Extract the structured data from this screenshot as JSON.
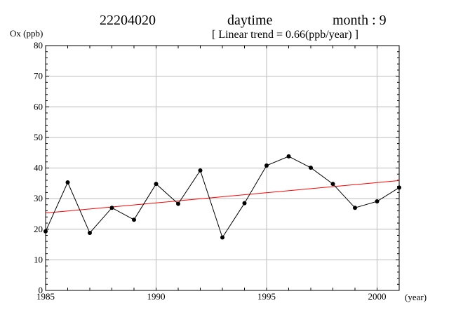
{
  "header": {
    "station": "22204020",
    "period": "daytime",
    "month": "month : 9",
    "trend": "[ Linear trend = 0.66(ppb/year) ]"
  },
  "chart_data": {
    "type": "line",
    "ylabel": "Ox (ppb)",
    "xlabel": "(year)",
    "xlim": [
      1985,
      2001
    ],
    "ylim": [
      0,
      80
    ],
    "x_ticks": [
      1985,
      1990,
      1995,
      2000
    ],
    "y_ticks": [
      0,
      10,
      20,
      30,
      40,
      50,
      60,
      70,
      80
    ],
    "grid": true,
    "colors": {
      "series": "#000000",
      "trend": "#ff0000",
      "grid": "#bbbbbb"
    },
    "series": [
      {
        "x": [
          1985,
          1986,
          1987,
          1988,
          1989,
          1990,
          1991,
          1992,
          1993,
          1994,
          1995,
          1996,
          1997,
          1998,
          1999,
          2000,
          2001
        ],
        "values": [
          19.3,
          35.3,
          18.8,
          27.0,
          23.1,
          34.8,
          28.3,
          39.2,
          17.3,
          28.5,
          40.8,
          43.8,
          40.1,
          34.8,
          27.0,
          29.1,
          33.6
        ]
      }
    ],
    "trend_line": {
      "slope": 0.66,
      "x": [
        1985,
        2001
      ],
      "y": [
        25.3,
        35.9
      ]
    }
  }
}
